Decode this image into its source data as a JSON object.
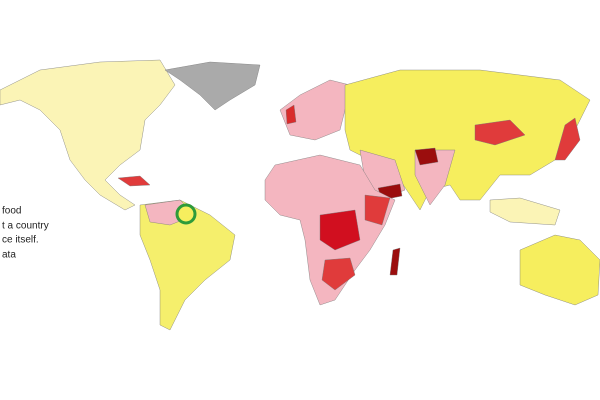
{
  "legend": {
    "lines": [
      "food",
      "t a country",
      "ce itself.",
      "ata"
    ]
  }
}
